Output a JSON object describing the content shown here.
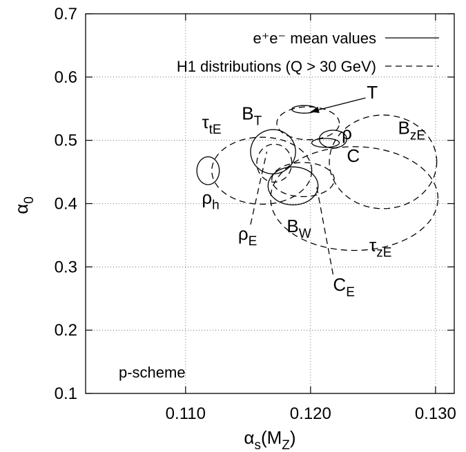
{
  "chart_data": {
    "type": "scatter",
    "title": "",
    "xlabel": {
      "main": "α",
      "sub_s": "s",
      "rest": "(M",
      "sub_z": "Z",
      "close": ")"
    },
    "ylabel": {
      "main": "α",
      "sub": "0"
    },
    "xlim": [
      0.102,
      0.1315
    ],
    "ylim": [
      0.1,
      0.7
    ],
    "grid": true,
    "grid_style": "dotted",
    "x_ticks": [
      {
        "value": 0.11,
        "label": "0.110"
      },
      {
        "value": 0.12,
        "label": "0.120"
      },
      {
        "value": 0.13,
        "label": "0.130"
      }
    ],
    "y_ticks": [
      {
        "value": 0.1,
        "label": "0.1"
      },
      {
        "value": 0.2,
        "label": "0.2"
      },
      {
        "value": 0.3,
        "label": "0.3"
      },
      {
        "value": 0.4,
        "label": "0.4"
      },
      {
        "value": 0.5,
        "label": "0.5"
      },
      {
        "value": 0.6,
        "label": "0.6"
      },
      {
        "value": 0.7,
        "label": "0.7"
      }
    ],
    "legend": {
      "placement": "top-right",
      "entries": [
        {
          "text": "e⁺e⁻ mean values",
          "style": "solid"
        },
        {
          "text": "H1 distributions (Q > 30 GeV)",
          "style": "dashed"
        }
      ]
    },
    "annotation": "p-scheme",
    "contours": [
      {
        "name": "T",
        "style": "solid",
        "cx": 0.1195,
        "cy": 0.549,
        "x_halfwidth": 0.001,
        "y_halfwidth": 0.006
      },
      {
        "name": "T (H1)",
        "style": "dashed",
        "cx": 0.1198,
        "cy": 0.527,
        "x_halfwidth": 0.0025,
        "y_halfwidth": 0.026
      },
      {
        "name": "ρ",
        "style": "solid",
        "cx": 0.1218,
        "cy": 0.502,
        "x_halfwidth": 0.0011,
        "y_halfwidth": 0.014
      },
      {
        "name": "C",
        "style": "solid",
        "cx": 0.1212,
        "cy": 0.496,
        "x_halfwidth": 0.0011,
        "y_halfwidth": 0.007
      },
      {
        "name": "B_zE",
        "style": "dashed",
        "cx": 0.1258,
        "cy": 0.466,
        "x_halfwidth": 0.0043,
        "y_halfwidth": 0.074
      },
      {
        "name": "B_T",
        "style": "solid",
        "cx": 0.117,
        "cy": 0.482,
        "x_halfwidth": 0.0018,
        "y_halfwidth": 0.035
      },
      {
        "name": "τ_tE",
        "style": "dashed",
        "cx": 0.1161,
        "cy": 0.452,
        "x_halfwidth": 0.004,
        "y_halfwidth": 0.053
      },
      {
        "name": "ρ_h",
        "style": "solid",
        "cx": 0.1118,
        "cy": 0.452,
        "x_halfwidth": 0.0009,
        "y_halfwidth": 0.022
      },
      {
        "name": "ρ_E",
        "style": "dashed",
        "cx": 0.1171,
        "cy": 0.464,
        "x_halfwidth": 0.0014,
        "y_halfwidth": 0.03
      },
      {
        "name": "B_W",
        "style": "solid",
        "cx": 0.1186,
        "cy": 0.428,
        "x_halfwidth": 0.002,
        "y_halfwidth": 0.03
      },
      {
        "name": "C_E",
        "style": "dashed",
        "cx": 0.1194,
        "cy": 0.438,
        "x_halfwidth": 0.0025,
        "y_halfwidth": 0.027
      },
      {
        "name": "τ_zE",
        "style": "dashed",
        "cx": 0.1235,
        "cy": 0.408,
        "x_halfwidth": 0.0067,
        "y_halfwidth": 0.082
      }
    ],
    "labels": [
      {
        "main": "T",
        "sub": "",
        "x": 0.1245,
        "y": 0.566
      },
      {
        "main": "ρ",
        "sub": "",
        "x": 0.1225,
        "y": 0.502
      },
      {
        "main": "C",
        "sub": "",
        "x": 0.1229,
        "y": 0.466
      },
      {
        "main": "B",
        "sub": "zE",
        "x": 0.127,
        "y": 0.51
      },
      {
        "main": "B",
        "sub": "T",
        "x": 0.1145,
        "y": 0.533
      },
      {
        "main": "τ",
        "sub": "tE",
        "x": 0.1113,
        "y": 0.519
      },
      {
        "main": "ρ",
        "sub": "h",
        "x": 0.1113,
        "y": 0.4
      },
      {
        "main": "ρ",
        "sub": "E",
        "x": 0.1142,
        "y": 0.343
      },
      {
        "main": "B",
        "sub": "W",
        "x": 0.1181,
        "y": 0.355
      },
      {
        "main": "τ",
        "sub": "zE",
        "x": 0.1247,
        "y": 0.325
      },
      {
        "main": "C",
        "sub": "E",
        "x": 0.1218,
        "y": 0.262
      }
    ],
    "pointers": [
      {
        "from": [
          0.1244,
          0.567
        ],
        "to": [
          0.12,
          0.545
        ],
        "arrow": true,
        "style": "solid"
      },
      {
        "from": [
          0.1152,
          0.367
        ],
        "to": [
          0.1165,
          0.482
        ],
        "arrow": false,
        "style": "dashed"
      },
      {
        "from": [
          0.1218,
          0.288
        ],
        "to": [
          0.1205,
          0.426
        ],
        "arrow": false,
        "style": "dashed"
      }
    ]
  }
}
